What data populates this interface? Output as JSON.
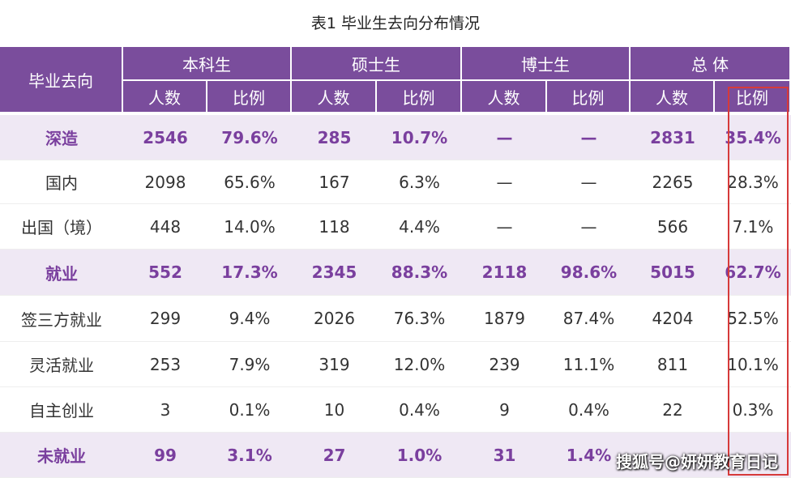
{
  "title": "表1  毕业生去向分布情况",
  "header": {
    "first": "毕业去向",
    "groups": [
      "本科生",
      "硕士生",
      "博士生",
      "总  体"
    ],
    "subheaders": [
      "人数",
      "比例",
      "人数",
      "比例",
      "人数",
      "比例",
      "人数",
      "比例"
    ]
  },
  "rows": [
    {
      "label": "深造",
      "highlight": true,
      "cells": [
        "2546",
        "79.6%",
        "285",
        "10.7%",
        "—",
        "—",
        "2831",
        "35.4%"
      ]
    },
    {
      "label": "国内",
      "highlight": false,
      "cells": [
        "2098",
        "65.6%",
        "167",
        "6.3%",
        "—",
        "—",
        "2265",
        "28.3%"
      ]
    },
    {
      "label": "出国（境）",
      "highlight": false,
      "cells": [
        "448",
        "14.0%",
        "118",
        "4.4%",
        "—",
        "—",
        "566",
        "7.1%"
      ]
    },
    {
      "label": "就业",
      "highlight": true,
      "cells": [
        "552",
        "17.3%",
        "2345",
        "88.3%",
        "2118",
        "98.6%",
        "5015",
        "62.7%"
      ]
    },
    {
      "label": "签三方就业",
      "highlight": false,
      "cells": [
        "299",
        "9.4%",
        "2026",
        "76.3%",
        "1879",
        "87.4%",
        "4204",
        "52.5%"
      ]
    },
    {
      "label": "灵活就业",
      "highlight": false,
      "cells": [
        "253",
        "7.9%",
        "319",
        "12.0%",
        "239",
        "11.1%",
        "811",
        "10.1%"
      ]
    },
    {
      "label": "自主创业",
      "highlight": false,
      "cells": [
        "3",
        "0.1%",
        "10",
        "0.4%",
        "9",
        "0.4%",
        "22",
        "0.3%"
      ]
    },
    {
      "label": "未就业",
      "highlight": true,
      "cells": [
        "99",
        "3.1%",
        "27",
        "1.0%",
        "31",
        "1.4%",
        null,
        null
      ]
    }
  ],
  "watermark": "搜狐号@妍妍教育日记"
}
